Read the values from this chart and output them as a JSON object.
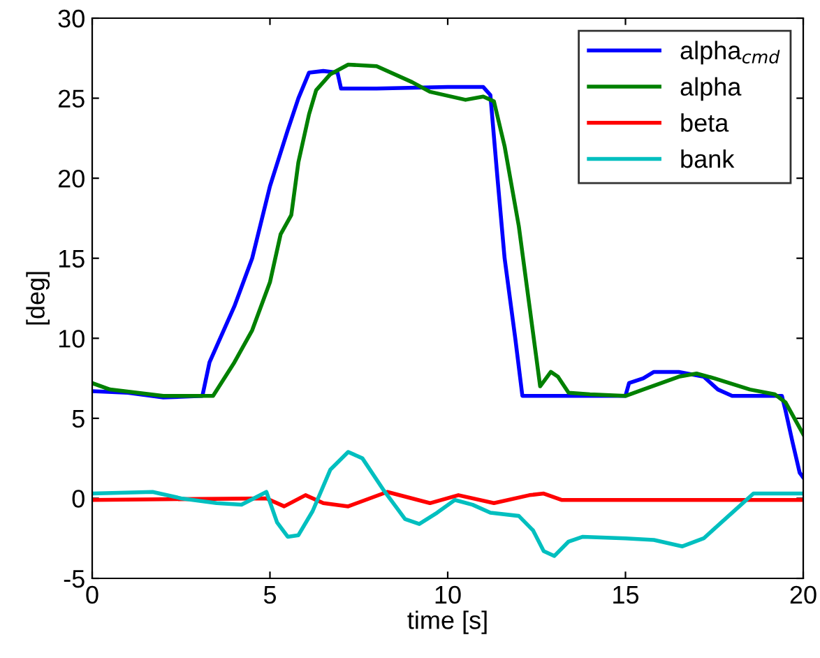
{
  "chart_data": {
    "type": "line",
    "xlabel": "time [s]",
    "ylabel": "[deg]",
    "xlim": [
      0,
      20
    ],
    "ylim": [
      -5,
      30
    ],
    "xticks": [
      0,
      5,
      10,
      15,
      20
    ],
    "yticks": [
      -5,
      0,
      5,
      10,
      15,
      20,
      25,
      30
    ],
    "grid": false,
    "legend": "top right",
    "marker": "none",
    "line_style": "solid",
    "series": [
      {
        "name": "alpha$_{cmd}$",
        "color": "#0000ff",
        "x": [
          0,
          1,
          2,
          3.1,
          3.3,
          4,
          4.5,
          5,
          5.5,
          5.8,
          6.1,
          6.5,
          6.9,
          7.0,
          8,
          10,
          11.0,
          11.2,
          11.4,
          11.6,
          11.9,
          12.1,
          13,
          15,
          15.1,
          15.5,
          15.8,
          16.5,
          17.2,
          17.6,
          18,
          19.4,
          19.5,
          19.7,
          19.9,
          20
        ],
        "values": [
          6.7,
          6.6,
          6.3,
          6.4,
          8.5,
          12,
          15,
          19.5,
          23,
          25,
          26.6,
          26.7,
          26.6,
          25.6,
          25.6,
          25.7,
          25.7,
          25.2,
          20,
          15,
          10,
          6.4,
          6.4,
          6.4,
          7.2,
          7.5,
          7.9,
          7.9,
          7.6,
          6.8,
          6.4,
          6.4,
          5.5,
          3.5,
          1.6,
          1.3
        ]
      },
      {
        "name": "alpha",
        "color": "#008000",
        "x": [
          0,
          0.5,
          2,
          3.4,
          4,
          4.5,
          5,
          5.3,
          5.6,
          5.8,
          6.1,
          6.3,
          6.7,
          7.2,
          8,
          9,
          9.5,
          10.5,
          11,
          11.3,
          11.6,
          12,
          12.3,
          12.6,
          12.9,
          13.1,
          13.4,
          14,
          15,
          15.5,
          16.5,
          17.0,
          17.5,
          18.5,
          19.2,
          19.5,
          20
        ],
        "values": [
          7.2,
          6.8,
          6.4,
          6.4,
          8.5,
          10.5,
          13.5,
          16.5,
          17.7,
          21,
          24,
          25.5,
          26.5,
          27.1,
          27,
          26,
          25.4,
          24.9,
          25.1,
          24.8,
          22,
          17,
          12,
          7,
          7.9,
          7.6,
          6.6,
          6.5,
          6.4,
          6.8,
          7.6,
          7.8,
          7.5,
          6.8,
          6.5,
          6.0,
          4.0
        ]
      },
      {
        "name": "beta",
        "color": "#ff0000",
        "x": [
          0,
          4.9,
          5.4,
          6.0,
          6.5,
          7.2,
          8.3,
          9.5,
          10.3,
          11.3,
          12.3,
          12.7,
          13.2,
          15,
          20
        ],
        "values": [
          -0.1,
          0.0,
          -0.5,
          0.2,
          -0.3,
          -0.5,
          0.4,
          -0.3,
          0.2,
          -0.3,
          0.2,
          0.3,
          -0.1,
          -0.1,
          -0.1
        ]
      },
      {
        "name": "bank",
        "color": "#00bfbf",
        "x": [
          0,
          1.7,
          2.5,
          3.5,
          4.2,
          4.9,
          5.2,
          5.5,
          5.8,
          6.2,
          6.7,
          7.2,
          7.6,
          8.2,
          8.8,
          9.2,
          9.7,
          10.2,
          10.7,
          11.2,
          12.0,
          12.4,
          12.7,
          13.0,
          13.4,
          13.8,
          15,
          15.8,
          16.6,
          17.2,
          18.2,
          18.6,
          20
        ],
        "values": [
          0.3,
          0.4,
          0.0,
          -0.3,
          -0.4,
          0.4,
          -1.5,
          -2.4,
          -2.3,
          -0.8,
          1.8,
          2.9,
          2.5,
          0.5,
          -1.3,
          -1.6,
          -0.9,
          -0.1,
          -0.4,
          -0.9,
          -1.1,
          -2.0,
          -3.3,
          -3.6,
          -2.7,
          -2.4,
          -2.5,
          -2.6,
          -3.0,
          -2.5,
          -0.5,
          0.3,
          0.3
        ]
      }
    ]
  }
}
